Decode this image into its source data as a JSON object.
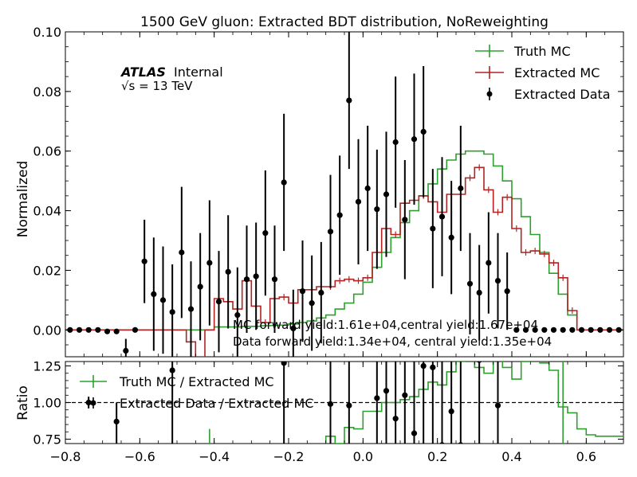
{
  "chart_data": {
    "type": "line",
    "title": "1500 GeV gluon: Extracted BDT distribution, NoReweighting",
    "atlas_label": "ATLAS",
    "atlas_status": "Internal",
    "energy_label": "√s = 13 TeV",
    "ylabel": "Normalized",
    "ratio_ylabel": "Ratio",
    "xlim": [
      -0.8,
      0.7
    ],
    "ylim": [
      -0.009,
      0.1
    ],
    "ratio_ylim": [
      0.72,
      1.28
    ],
    "x_ticks": [
      "−0.8",
      "−0.6",
      "−0.4",
      "−0.2",
      "0.0",
      "0.2",
      "0.4",
      "0.6"
    ],
    "y_ticks": [
      "0.00",
      "0.02",
      "0.04",
      "0.06",
      "0.08",
      "0.10"
    ],
    "ratio_y_ticks": [
      "0.75",
      "1.00",
      "1.25"
    ],
    "grid": false,
    "legend_placement": "top-right",
    "ratio_legend_placement": "top-left",
    "legend": [
      "Truth MC",
      "Extracted MC",
      "Extracted Data"
    ],
    "ratio_legend": [
      "Truth MC / Extracted MC",
      "Extracted Data / Extracted MC"
    ],
    "annotations": [
      "MC forward yield:1.61e+04,central yield:1.67e+04",
      "Data forward yield:1.34e+04, central yield:1.35e+04"
    ],
    "colors": {
      "truth": "#2ca02c",
      "extracted": "#b22222",
      "data": "#000000"
    },
    "bins": {
      "start": -0.8,
      "width": 0.025,
      "count": 60
    },
    "series": [
      {
        "name": "Truth MC",
        "values": [
          0,
          0,
          0,
          0,
          0,
          0,
          0,
          0,
          0,
          0,
          0,
          0,
          0,
          0,
          0,
          0,
          0.001,
          0.001,
          0.001,
          0.0012,
          0.0012,
          0.0014,
          0.0015,
          0.0016,
          0.002,
          0.0025,
          0.003,
          0.004,
          0.005,
          0.007,
          0.009,
          0.012,
          0.016,
          0.021,
          0.026,
          0.031,
          0.036,
          0.04,
          0.045,
          0.049,
          0.054,
          0.057,
          0.059,
          0.06,
          0.06,
          0.059,
          0.055,
          0.05,
          0.044,
          0.038,
          0.032,
          0.026,
          0.019,
          0.012,
          0.005,
          0,
          0,
          0,
          0,
          0
        ]
      },
      {
        "name": "Extracted MC",
        "values": [
          0,
          0,
          0,
          0,
          0,
          0,
          0,
          0,
          0,
          0,
          0,
          0,
          0,
          -0.004,
          -0.015,
          0,
          0.0105,
          0.0095,
          0.007,
          0.0165,
          0.008,
          0.0025,
          0.0105,
          0.011,
          0.009,
          0.0135,
          0.0135,
          0.0145,
          0.0145,
          0.0165,
          0.017,
          0.0165,
          0.0175,
          0.026,
          0.034,
          0.032,
          0.0425,
          0.0435,
          0.045,
          0.043,
          0.0395,
          0.0455,
          0.0455,
          0.051,
          0.0545,
          0.047,
          0.0395,
          0.0445,
          0.034,
          0.026,
          0.0265,
          0.0255,
          0.0225,
          0.0175,
          0.0065,
          0,
          0,
          0,
          0,
          0
        ]
      },
      {
        "name": "Extracted Data",
        "x": [
          -0.7875,
          -0.7625,
          -0.7375,
          -0.7125,
          -0.6875,
          -0.6625,
          -0.6375,
          -0.6125,
          -0.5875,
          -0.5625,
          -0.5375,
          -0.5125,
          -0.4875,
          -0.4625,
          -0.4375,
          -0.4125,
          -0.3875,
          -0.3625,
          -0.3375,
          -0.3125,
          -0.2875,
          -0.2625,
          -0.2375,
          -0.2125,
          -0.1875,
          -0.1625,
          -0.1375,
          -0.1125,
          -0.0875,
          -0.0625,
          -0.0375,
          -0.0125,
          0.0125,
          0.0375,
          0.0625,
          0.0875,
          0.1125,
          0.1375,
          0.1625,
          0.1875,
          0.2125,
          0.2375,
          0.2625,
          0.2875,
          0.3125,
          0.3375,
          0.3625,
          0.3875,
          0.4125,
          0.4375,
          0.4625,
          0.4875,
          0.5125,
          0.5375,
          0.5625,
          0.5875,
          0.6125,
          0.6375,
          0.6625,
          0.6875
        ],
        "values": [
          0,
          0,
          0,
          0,
          -0.0005,
          -0.0005,
          -0.007,
          0,
          0.023,
          0.012,
          0.01,
          0.006,
          0.026,
          0.007,
          0.0145,
          0.0225,
          0.0095,
          0.0195,
          0.005,
          0.017,
          0.018,
          0.0325,
          0.017,
          0.0495,
          0.0005,
          0.013,
          0.009,
          0.0125,
          0.033,
          0.0385,
          0.077,
          0.043,
          0.0475,
          0.0405,
          0.0455,
          0.063,
          0.037,
          0.064,
          0.0665,
          0.034,
          0.038,
          0.031,
          0.0475,
          0.0155,
          0.0125,
          0.0225,
          0.0165,
          0.013,
          0,
          0,
          0,
          0,
          0,
          0,
          0,
          0,
          0,
          0,
          0,
          0
        ],
        "errors": [
          0,
          0,
          0,
          0,
          0,
          0,
          0.004,
          0,
          0.014,
          0.019,
          0.018,
          0.016,
          0.022,
          0.016,
          0.018,
          0.021,
          0.017,
          0.019,
          0.016,
          0.018,
          0.018,
          0.021,
          0.018,
          0.023,
          0.013,
          0.017,
          0.016,
          0.017,
          0.019,
          0.02,
          0.023,
          0.021,
          0.021,
          0.02,
          0.021,
          0.022,
          0.02,
          0.022,
          0.022,
          0.02,
          0.02,
          0.019,
          0.021,
          0.017,
          0.016,
          0.017,
          0.016,
          0.013,
          0,
          0,
          0,
          0,
          0,
          0,
          0,
          0,
          0,
          0,
          0,
          0
        ]
      }
    ],
    "ratio_series": [
      {
        "name": "Truth MC / Extracted MC",
        "x_start": -0.425,
        "values": [
          0.6,
          0.6,
          0.6,
          0.6,
          0.6,
          0.6,
          0.6,
          0.6,
          0.6,
          0.6,
          0.6,
          0.6,
          0.6,
          0.77,
          0.72,
          0.83,
          0.82,
          0.94,
          0.94,
          1.0,
          1.0,
          1.02,
          1.04,
          1.09,
          1.14,
          1.12,
          1.21,
          1.28,
          1.33,
          1.24,
          1.2,
          1.29,
          1.24,
          1.16,
          1.28,
          1.29,
          1.27,
          1.22,
          0.97,
          0.93,
          0.82,
          0.78,
          0.77,
          0.77,
          0.77,
          0.6
        ],
        "error_x": 0.5375,
        "error_y": [
          0.72,
          1.28
        ]
      },
      {
        "name": "Extracted Data / Extracted MC",
        "points": [
          {
            "x": -0.7375,
            "y": 1.0,
            "lo": 0.96,
            "hi": 1.04
          },
          {
            "x": -0.6625,
            "y": 0.87,
            "lo": 0.72,
            "hi": 1.0
          },
          {
            "x": -0.5125,
            "y": 1.22,
            "lo": 0.72,
            "hi": 1.28
          },
          {
            "x": -0.2125,
            "y": 1.27,
            "lo": 0.72,
            "hi": 1.28
          },
          {
            "x": -0.0875,
            "y": 0.99,
            "lo": 0.72,
            "hi": 1.28
          },
          {
            "x": -0.0375,
            "y": 0.98,
            "lo": 0.72,
            "hi": 1.28
          },
          {
            "x": 0.0375,
            "y": 1.03,
            "lo": 0.72,
            "hi": 1.28
          },
          {
            "x": 0.0625,
            "y": 1.08,
            "lo": 0.72,
            "hi": 1.28
          },
          {
            "x": 0.0875,
            "y": 0.89,
            "lo": 0.72,
            "hi": 1.28
          },
          {
            "x": 0.1125,
            "y": 1.05,
            "lo": 0.72,
            "hi": 1.28
          },
          {
            "x": 0.1375,
            "y": 0.79,
            "lo": 0.72,
            "hi": 1.28
          },
          {
            "x": 0.1625,
            "y": 1.25,
            "lo": 0.72,
            "hi": 1.28
          },
          {
            "x": 0.1875,
            "y": 1.24,
            "lo": 0.72,
            "hi": 1.28
          },
          {
            "x": 0.2125,
            "y": 0.71,
            "lo": 0.72,
            "hi": 1.28
          },
          {
            "x": 0.2375,
            "y": 0.94,
            "lo": 0.72,
            "hi": 1.28
          },
          {
            "x": 0.2625,
            "y": 0.71,
            "lo": 0.72,
            "hi": 1.28
          },
          {
            "x": 0.3125,
            "y": 1.29,
            "lo": 0.72,
            "hi": 1.28
          },
          {
            "x": 0.3625,
            "y": 0.98,
            "lo": 0.72,
            "hi": 1.28
          }
        ]
      }
    ]
  }
}
